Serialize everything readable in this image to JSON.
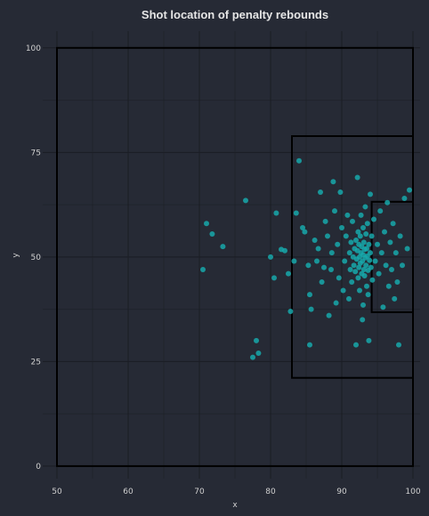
{
  "chart_data": {
    "type": "scatter",
    "title": "Shot location of penalty rebounds",
    "xlabel": "x",
    "ylabel": "y",
    "xlim": [
      48,
      101
    ],
    "ylim": [
      -3,
      104
    ],
    "grid": true,
    "x_ticks": [
      50,
      60,
      70,
      80,
      90,
      100
    ],
    "y_ticks": [
      0,
      25,
      50,
      75,
      100
    ],
    "colors": {
      "background": "#262a35",
      "points": "#17a8aa",
      "pitch_lines": "#000000",
      "grid": "#1a1d24",
      "text": "#d0d0d0"
    },
    "pitch_markings": [
      {
        "name": "half-pitch",
        "x": [
          50,
          100
        ],
        "y": [
          0,
          100
        ]
      },
      {
        "name": "penalty-box",
        "x": [
          83,
          100
        ],
        "y": [
          21.1,
          78.9
        ]
      },
      {
        "name": "six-yard-box",
        "x": [
          94.2,
          100
        ],
        "y": [
          36.8,
          63.2
        ]
      }
    ],
    "points": [
      [
        70.5,
        47
      ],
      [
        71,
        58
      ],
      [
        71.8,
        55.5
      ],
      [
        73.3,
        52.5
      ],
      [
        76.5,
        63.5
      ],
      [
        77.5,
        26
      ],
      [
        78,
        30
      ],
      [
        78.3,
        27
      ],
      [
        80,
        50
      ],
      [
        80.5,
        45
      ],
      [
        80.8,
        60.5
      ],
      [
        81.5,
        51.8
      ],
      [
        82,
        51.5
      ],
      [
        82.5,
        46
      ],
      [
        82.8,
        37
      ],
      [
        83.3,
        49
      ],
      [
        83.6,
        60.5
      ],
      [
        84,
        73
      ],
      [
        84.5,
        57
      ],
      [
        84.8,
        56
      ],
      [
        85.3,
        48
      ],
      [
        85.5,
        41
      ],
      [
        85.7,
        37.5
      ],
      [
        85.5,
        29
      ],
      [
        86.2,
        54
      ],
      [
        86.5,
        49
      ],
      [
        86.7,
        52
      ],
      [
        87,
        65.5
      ],
      [
        87.2,
        44
      ],
      [
        87.5,
        47.5
      ],
      [
        87.7,
        58.5
      ],
      [
        88,
        55
      ],
      [
        88.2,
        36
      ],
      [
        88.5,
        47
      ],
      [
        88.6,
        51
      ],
      [
        88.8,
        68
      ],
      [
        89,
        61
      ],
      [
        89.2,
        39
      ],
      [
        89.4,
        53
      ],
      [
        89.6,
        45
      ],
      [
        89.8,
        65.5
      ],
      [
        90,
        57
      ],
      [
        90.2,
        42
      ],
      [
        90.4,
        49
      ],
      [
        90.6,
        55
      ],
      [
        90.8,
        60
      ],
      [
        91,
        40
      ],
      [
        91.1,
        51
      ],
      [
        91.2,
        47
      ],
      [
        91.3,
        53.5
      ],
      [
        91.4,
        44
      ],
      [
        91.5,
        58.5
      ],
      [
        91.6,
        50
      ],
      [
        91.7,
        48
      ],
      [
        91.8,
        52
      ],
      [
        91.9,
        46.5
      ],
      [
        92,
        54
      ],
      [
        92,
        29
      ],
      [
        92.1,
        49.5
      ],
      [
        92.2,
        51.5
      ],
      [
        92.2,
        69
      ],
      [
        92.3,
        45
      ],
      [
        92.3,
        56
      ],
      [
        92.4,
        47.5
      ],
      [
        92.4,
        53
      ],
      [
        92.5,
        50
      ],
      [
        92.5,
        42
      ],
      [
        92.6,
        48.5
      ],
      [
        92.6,
        55
      ],
      [
        92.7,
        51
      ],
      [
        92.7,
        60
      ],
      [
        92.8,
        46
      ],
      [
        92.8,
        52.5
      ],
      [
        92.9,
        49
      ],
      [
        92.9,
        35
      ],
      [
        93,
        50.5
      ],
      [
        93,
        57
      ],
      [
        93,
        38.5
      ],
      [
        93.1,
        47
      ],
      [
        93.1,
        53.5
      ],
      [
        93.2,
        45.5
      ],
      [
        93.2,
        51.8
      ],
      [
        93.3,
        49.8
      ],
      [
        93.3,
        62
      ],
      [
        93.4,
        48
      ],
      [
        93.4,
        55.5
      ],
      [
        93.5,
        52
      ],
      [
        93.5,
        43
      ],
      [
        93.6,
        50.2
      ],
      [
        93.6,
        58
      ],
      [
        93.7,
        46.8
      ],
      [
        93.7,
        41
      ],
      [
        93.8,
        53
      ],
      [
        93.8,
        30
      ],
      [
        93.9,
        49.2
      ],
      [
        94,
        51
      ],
      [
        94,
        65
      ],
      [
        94.1,
        47.5
      ],
      [
        94.2,
        55
      ],
      [
        94.3,
        44.5
      ],
      [
        94.5,
        59
      ],
      [
        94.7,
        49
      ],
      [
        95,
        53
      ],
      [
        95.2,
        46
      ],
      [
        95.4,
        61
      ],
      [
        95.6,
        51
      ],
      [
        95.8,
        38
      ],
      [
        96,
        56
      ],
      [
        96.2,
        48
      ],
      [
        96.4,
        63
      ],
      [
        96.6,
        43
      ],
      [
        96.8,
        53.5
      ],
      [
        97,
        47
      ],
      [
        97.2,
        58
      ],
      [
        97.4,
        40
      ],
      [
        97.6,
        51
      ],
      [
        97.8,
        44
      ],
      [
        98,
        29
      ],
      [
        98.2,
        55
      ],
      [
        98.5,
        48
      ],
      [
        98.8,
        64
      ],
      [
        99.2,
        52
      ],
      [
        99.5,
        66
      ]
    ]
  }
}
